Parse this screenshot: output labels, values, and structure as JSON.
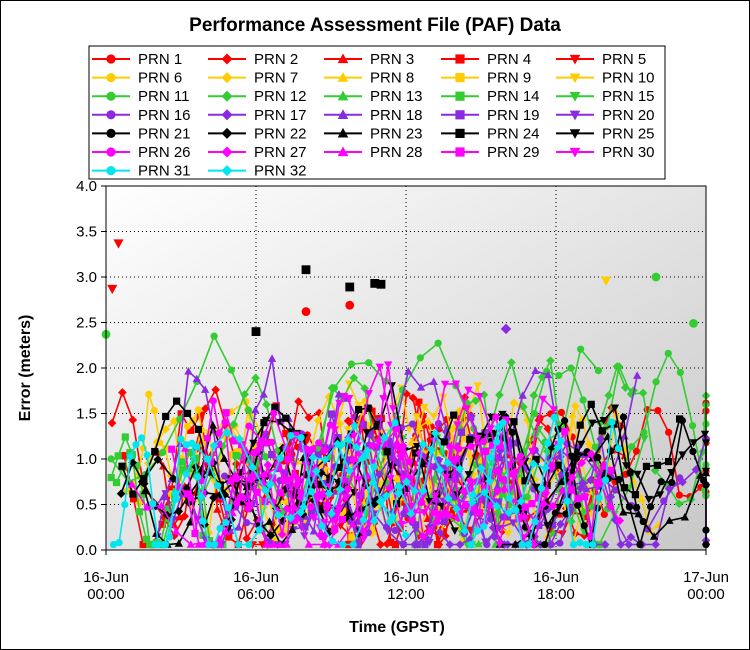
{
  "chart_data": {
    "type": "line",
    "title": "Performance Assessment File (PAF) Data",
    "xlabel": "Time (GPST)",
    "ylabel": "Error (meters)",
    "ylim": [
      0,
      4.0
    ],
    "xlim": [
      "2016-06-16 00:00",
      "2016-06-17 00:00"
    ],
    "x_ticks": [
      {
        "line1": "16-Jun",
        "line2": "00:00"
      },
      {
        "line1": "16-Jun",
        "line2": "06:00"
      },
      {
        "line1": "16-Jun",
        "line2": "12:00"
      },
      {
        "line1": "16-Jun",
        "line2": "18:00"
      },
      {
        "line1": "17-Jun",
        "line2": "00:00"
      }
    ],
    "y_ticks": [
      "0.0",
      "0.5",
      "1.0",
      "1.5",
      "2.0",
      "2.5",
      "3.0",
      "3.5",
      "4.0"
    ],
    "grid": true,
    "legend_position": "top",
    "series": [
      {
        "name": "PRN 1",
        "color": "#ff0000",
        "marker": "circle"
      },
      {
        "name": "PRN 2",
        "color": "#ff0000",
        "marker": "diamond"
      },
      {
        "name": "PRN 3",
        "color": "#ff0000",
        "marker": "triangle-up"
      },
      {
        "name": "PRN 4",
        "color": "#ff0000",
        "marker": "square"
      },
      {
        "name": "PRN 5",
        "color": "#ff0000",
        "marker": "triangle-down"
      },
      {
        "name": "PRN 6",
        "color": "#ffcc00",
        "marker": "circle"
      },
      {
        "name": "PRN 7",
        "color": "#ffcc00",
        "marker": "diamond"
      },
      {
        "name": "PRN 8",
        "color": "#ffcc00",
        "marker": "triangle-up"
      },
      {
        "name": "PRN 9",
        "color": "#ffcc00",
        "marker": "square"
      },
      {
        "name": "PRN 10",
        "color": "#ffcc00",
        "marker": "triangle-down"
      },
      {
        "name": "PRN 11",
        "color": "#33cc33",
        "marker": "circle"
      },
      {
        "name": "PRN 12",
        "color": "#33cc33",
        "marker": "diamond"
      },
      {
        "name": "PRN 13",
        "color": "#33cc33",
        "marker": "triangle-up"
      },
      {
        "name": "PRN 14",
        "color": "#33cc33",
        "marker": "square"
      },
      {
        "name": "PRN 15",
        "color": "#33cc33",
        "marker": "triangle-down"
      },
      {
        "name": "PRN 16",
        "color": "#8a2be2",
        "marker": "circle"
      },
      {
        "name": "PRN 17",
        "color": "#8a2be2",
        "marker": "diamond"
      },
      {
        "name": "PRN 18",
        "color": "#8a2be2",
        "marker": "triangle-up"
      },
      {
        "name": "PRN 19",
        "color": "#8a2be2",
        "marker": "square"
      },
      {
        "name": "PRN 20",
        "color": "#8a2be2",
        "marker": "triangle-down"
      },
      {
        "name": "PRN 21",
        "color": "#000000",
        "marker": "circle"
      },
      {
        "name": "PRN 22",
        "color": "#000000",
        "marker": "diamond"
      },
      {
        "name": "PRN 23",
        "color": "#000000",
        "marker": "triangle-up"
      },
      {
        "name": "PRN 24",
        "color": "#000000",
        "marker": "square"
      },
      {
        "name": "PRN 25",
        "color": "#000000",
        "marker": "triangle-down"
      },
      {
        "name": "PRN 26",
        "color": "#ff00ff",
        "marker": "circle"
      },
      {
        "name": "PRN 27",
        "color": "#ff00ff",
        "marker": "diamond"
      },
      {
        "name": "PRN 28",
        "color": "#ff00ff",
        "marker": "triangle-up"
      },
      {
        "name": "PRN 29",
        "color": "#ff00ff",
        "marker": "square"
      },
      {
        "name": "PRN 30",
        "color": "#ff00ff",
        "marker": "triangle-down"
      },
      {
        "name": "PRN 31",
        "color": "#00e5ee",
        "marker": "circle"
      },
      {
        "name": "PRN 32",
        "color": "#00e5ee",
        "marker": "diamond"
      }
    ],
    "notable_points": [
      {
        "series": "PRN 5",
        "time": "2016-06-16 00:30",
        "value": 3.37
      },
      {
        "series": "PRN 5",
        "time": "2016-06-16 00:15",
        "value": 2.87
      },
      {
        "series": "PRN 24",
        "time": "2016-06-16 08:00",
        "value": 3.08
      },
      {
        "series": "PRN 24",
        "time": "2016-06-16 10:45",
        "value": 2.93
      },
      {
        "series": "PRN 24",
        "time": "2016-06-16 11:00",
        "value": 2.92
      },
      {
        "series": "PRN 24",
        "time": "2016-06-16 09:45",
        "value": 2.89
      },
      {
        "series": "PRN 24",
        "time": "2016-06-16 06:00",
        "value": 2.4
      },
      {
        "series": "PRN 11",
        "time": "2016-06-16 22:00",
        "value": 3.0
      },
      {
        "series": "PRN 10",
        "time": "2016-06-16 20:00",
        "value": 2.96
      },
      {
        "series": "PRN 1",
        "time": "2016-06-16 09:45",
        "value": 2.69
      },
      {
        "series": "PRN 1",
        "time": "2016-06-16 08:00",
        "value": 2.62
      },
      {
        "series": "PRN 11",
        "time": "2016-06-16 23:30",
        "value": 2.49
      },
      {
        "series": "PRN 17",
        "time": "2016-06-16 16:00",
        "value": 2.43
      },
      {
        "series": "PRN 11",
        "time": "2016-06-16 00:00",
        "value": 2.37
      }
    ]
  }
}
